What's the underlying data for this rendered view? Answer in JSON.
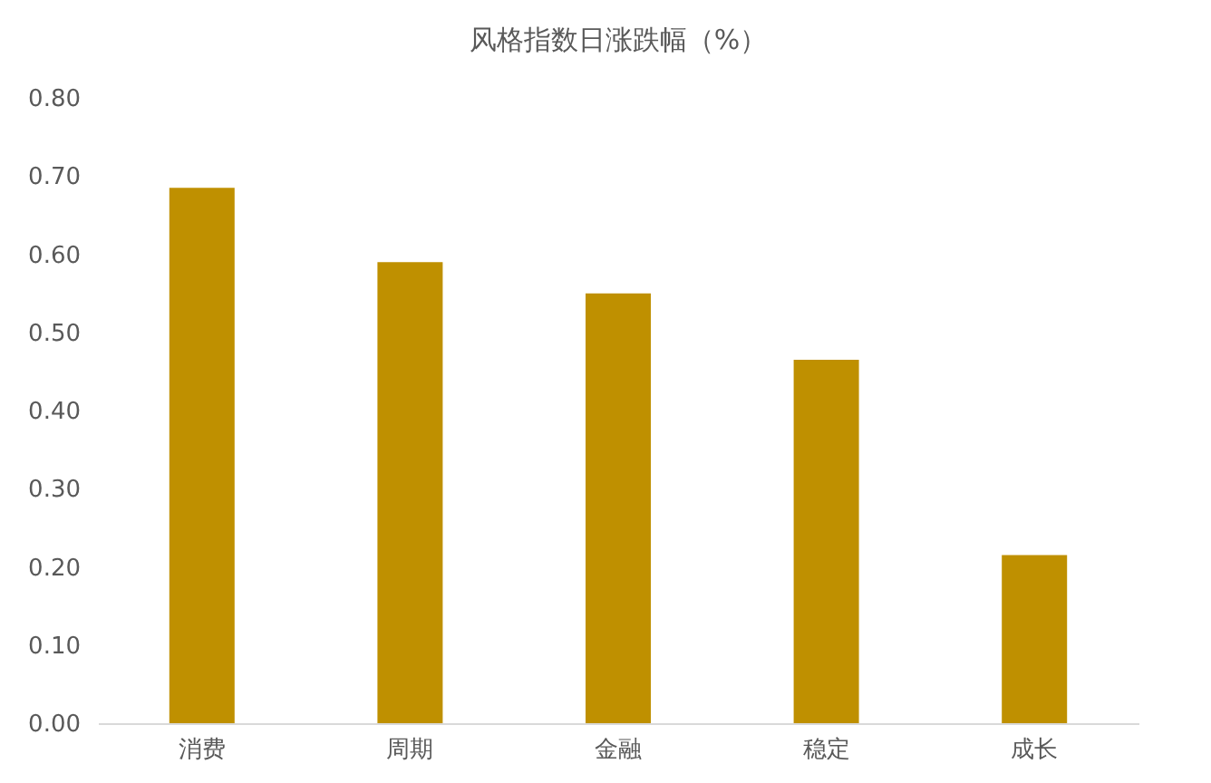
{
  "chart_data": {
    "type": "bar",
    "title": "风格指数日涨跌幅（%）",
    "categories": [
      "消费",
      "周期",
      "金融",
      "稳定",
      "成长"
    ],
    "values": [
      0.685,
      0.59,
      0.55,
      0.465,
      0.215
    ],
    "color": "#bf9000",
    "ylim": [
      0,
      0.8
    ],
    "yticks": [
      {
        "value": 0,
        "label": "0.00"
      },
      {
        "value": 0.1,
        "label": "0.10"
      },
      {
        "value": 0.2,
        "label": "0.20"
      },
      {
        "value": 0.3,
        "label": "0.30"
      },
      {
        "value": 0.4,
        "label": "0.40"
      },
      {
        "value": 0.5,
        "label": "0.50"
      },
      {
        "value": 0.6,
        "label": "0.60"
      },
      {
        "value": 0.7,
        "label": "0.70"
      },
      {
        "value": 0.8,
        "label": "0.80"
      }
    ],
    "grid": false
  }
}
